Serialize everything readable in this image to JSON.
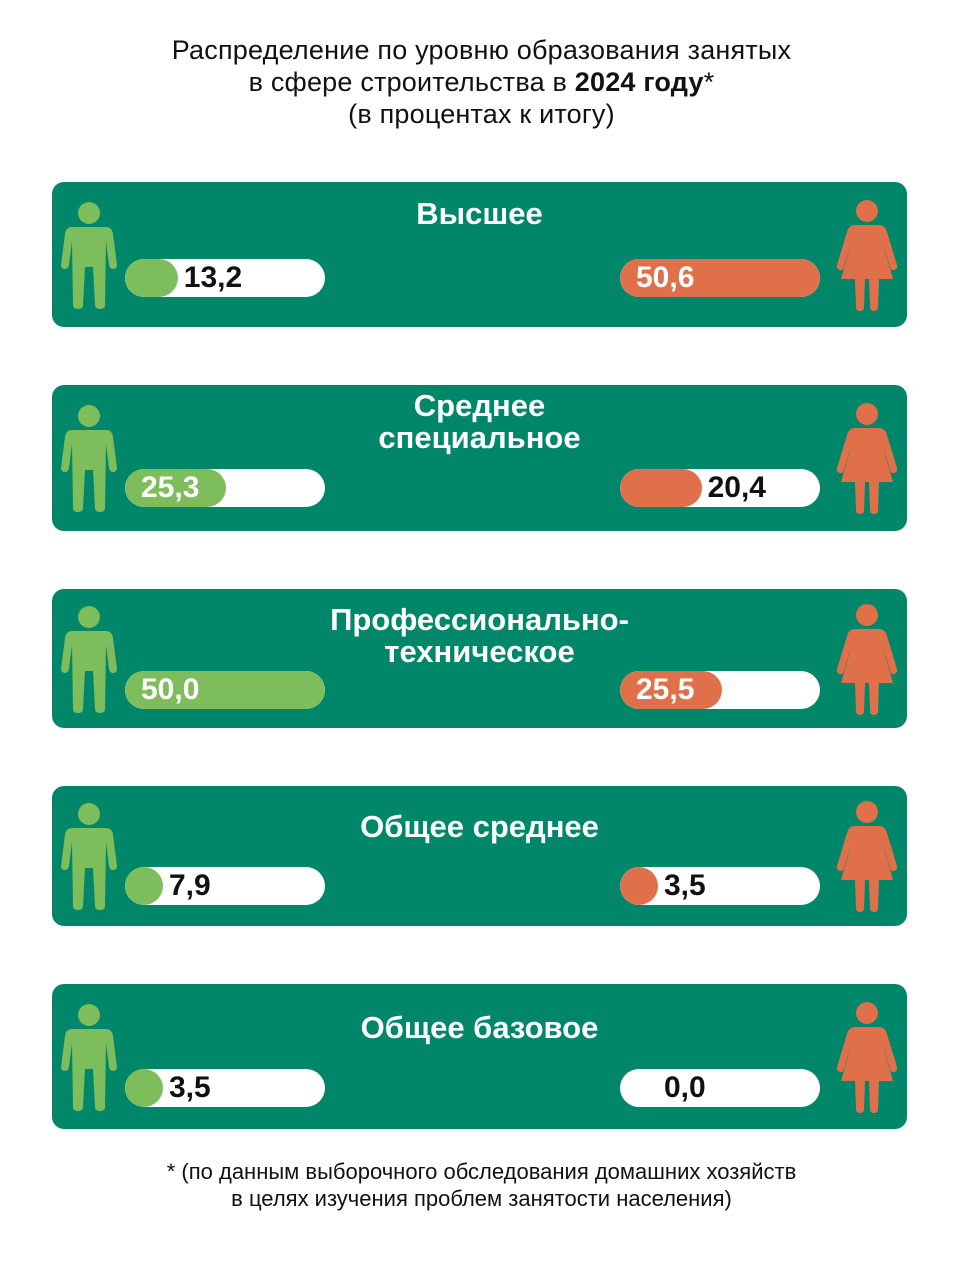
{
  "title": {
    "line1": "Распределение по уровню образования занятых",
    "line2_prefix": "в сфере строительства в ",
    "line2_bold": "2024 году",
    "line2_suffix": "*",
    "line3": "(в процентах к итогу)"
  },
  "footnote": {
    "line1": "* (по данным выборочного обследования домашних хозяйств",
    "line2": "в целях изучения проблем занятости населения)"
  },
  "colors": {
    "panel": "#00876a",
    "male": "#7dbd5c",
    "female": "#e0704a"
  },
  "icons": {
    "male": "man-figure-icon",
    "female": "woman-figure-icon"
  },
  "chart_data": {
    "type": "bar",
    "unit": "%",
    "categories": [
      "Высшее",
      "Среднее специальное",
      "Профессионально-техническое",
      "Общее среднее",
      "Общее базовое"
    ],
    "series": [
      {
        "name": "",
        "gender_icon": "man-figure-icon",
        "values": [
          13.2,
          25.3,
          50.0,
          7.9,
          3.5
        ],
        "labels": [
          "13,2",
          "25,3",
          "50,0",
          "7,9",
          "3,5"
        ]
      },
      {
        "name": "",
        "gender_icon": "woman-figure-icon",
        "values": [
          50.6,
          20.4,
          25.5,
          3.5,
          0.0
        ],
        "labels": [
          "50,6",
          "20,4",
          "25,5",
          "3,5",
          "0,0"
        ]
      }
    ],
    "rows": [
      {
        "title_lines": [
          "Высшее"
        ],
        "male_label": "13,2",
        "male_value": 13.2,
        "female_label": "50,6",
        "female_value": 50.6
      },
      {
        "title_lines": [
          "Среднее",
          "специальное"
        ],
        "male_label": "25,3",
        "male_value": 25.3,
        "female_label": "20,4",
        "female_value": 20.4
      },
      {
        "title_lines": [
          "Профессионально-",
          "техническое"
        ],
        "male_label": "50,0",
        "male_value": 50.0,
        "female_label": "25,5",
        "female_value": 25.5
      },
      {
        "title_lines": [
          "Общее среднее"
        ],
        "male_label": "7,9",
        "male_value": 7.9,
        "female_label": "3,5",
        "female_value": 3.5
      },
      {
        "title_lines": [
          "Общее базовое"
        ],
        "male_label": "3,5",
        "male_value": 3.5,
        "female_label": "0,0",
        "female_value": 0.0
      }
    ]
  }
}
